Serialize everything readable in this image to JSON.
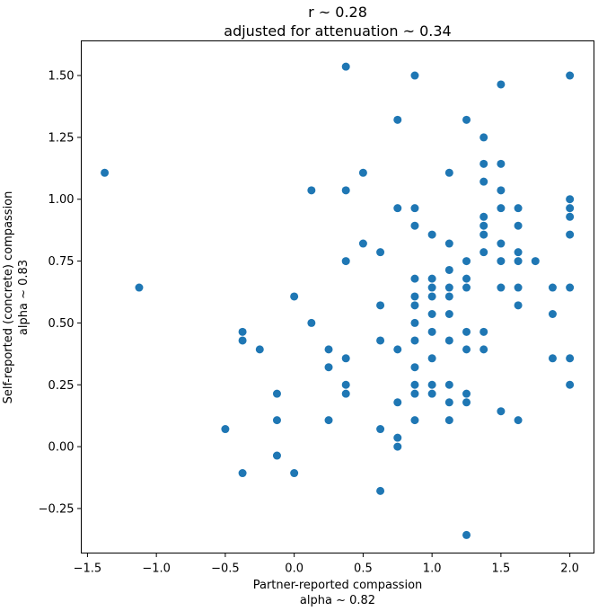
{
  "chart_data": {
    "type": "scatter",
    "title_lines": [
      "r ~ 0.28",
      "adjusted for attenuation ~ 0.34"
    ],
    "xlabel_lines": [
      "Partner-reported compassion",
      "alpha ~ 0.82"
    ],
    "ylabel_lines": [
      "Self-reported (concrete) compassion",
      "alpha ~ 0.83"
    ],
    "xlim": [
      -1.545,
      2.175
    ],
    "ylim": [
      -0.43,
      1.64
    ],
    "xticks": [
      -1.5,
      -1.0,
      -0.5,
      0.0,
      0.5,
      1.0,
      1.5,
      2.0
    ],
    "xtick_labels": [
      "−1.5",
      "−1.0",
      "−0.5",
      "0.0",
      "0.5",
      "1.0",
      "1.5",
      "2.0"
    ],
    "yticks": [
      -0.25,
      0.0,
      0.25,
      0.5,
      0.75,
      1.0,
      1.25,
      1.5
    ],
    "ytick_labels": [
      "−0.25",
      "0.00",
      "0.25",
      "0.50",
      "0.75",
      "1.00",
      "1.25",
      "1.50"
    ],
    "grid": false,
    "marker_color": "#1f77b4",
    "points": [
      {
        "x": -1.375,
        "y": 1.107
      },
      {
        "x": -1.125,
        "y": 0.643
      },
      {
        "x": -0.5,
        "y": 0.071
      },
      {
        "x": -0.375,
        "y": 0.464
      },
      {
        "x": -0.375,
        "y": 0.429
      },
      {
        "x": -0.375,
        "y": -0.107
      },
      {
        "x": -0.25,
        "y": 0.393
      },
      {
        "x": -0.125,
        "y": 0.214
      },
      {
        "x": -0.125,
        "y": 0.107
      },
      {
        "x": -0.125,
        "y": -0.036
      },
      {
        "x": 0.0,
        "y": 0.607
      },
      {
        "x": 0.0,
        "y": -0.107
      },
      {
        "x": 0.125,
        "y": 1.036
      },
      {
        "x": 0.125,
        "y": 0.5
      },
      {
        "x": 0.25,
        "y": 0.393
      },
      {
        "x": 0.25,
        "y": 0.321
      },
      {
        "x": 0.25,
        "y": 0.107
      },
      {
        "x": 0.375,
        "y": 1.536
      },
      {
        "x": 0.375,
        "y": 1.036
      },
      {
        "x": 0.375,
        "y": 0.75
      },
      {
        "x": 0.375,
        "y": 0.357
      },
      {
        "x": 0.375,
        "y": 0.25
      },
      {
        "x": 0.375,
        "y": 0.214
      },
      {
        "x": 0.5,
        "y": 1.107
      },
      {
        "x": 0.5,
        "y": 0.821
      },
      {
        "x": 0.625,
        "y": 0.786
      },
      {
        "x": 0.625,
        "y": 0.571
      },
      {
        "x": 0.625,
        "y": 0.429
      },
      {
        "x": 0.625,
        "y": 0.071
      },
      {
        "x": 0.625,
        "y": -0.179
      },
      {
        "x": 0.75,
        "y": 1.321
      },
      {
        "x": 0.75,
        "y": 0.964
      },
      {
        "x": 0.75,
        "y": 0.393
      },
      {
        "x": 0.75,
        "y": 0.179
      },
      {
        "x": 0.75,
        "y": 0.036
      },
      {
        "x": 0.75,
        "y": 0.0
      },
      {
        "x": 0.875,
        "y": 1.5
      },
      {
        "x": 0.875,
        "y": 0.964
      },
      {
        "x": 0.875,
        "y": 0.893
      },
      {
        "x": 0.875,
        "y": 0.679
      },
      {
        "x": 0.875,
        "y": 0.607
      },
      {
        "x": 0.875,
        "y": 0.571
      },
      {
        "x": 0.875,
        "y": 0.5
      },
      {
        "x": 0.875,
        "y": 0.429
      },
      {
        "x": 0.875,
        "y": 0.321
      },
      {
        "x": 0.875,
        "y": 0.25
      },
      {
        "x": 0.875,
        "y": 0.214
      },
      {
        "x": 0.875,
        "y": 0.107
      },
      {
        "x": 1.0,
        "y": 0.857
      },
      {
        "x": 1.0,
        "y": 0.679
      },
      {
        "x": 1.0,
        "y": 0.643
      },
      {
        "x": 1.0,
        "y": 0.607
      },
      {
        "x": 1.0,
        "y": 0.536
      },
      {
        "x": 1.0,
        "y": 0.464
      },
      {
        "x": 1.0,
        "y": 0.357
      },
      {
        "x": 1.0,
        "y": 0.25
      },
      {
        "x": 1.0,
        "y": 0.214
      },
      {
        "x": 1.125,
        "y": 1.107
      },
      {
        "x": 1.125,
        "y": 0.821
      },
      {
        "x": 1.125,
        "y": 0.714
      },
      {
        "x": 1.125,
        "y": 0.643
      },
      {
        "x": 1.125,
        "y": 0.607
      },
      {
        "x": 1.125,
        "y": 0.536
      },
      {
        "x": 1.125,
        "y": 0.429
      },
      {
        "x": 1.125,
        "y": 0.25
      },
      {
        "x": 1.125,
        "y": 0.179
      },
      {
        "x": 1.125,
        "y": 0.107
      },
      {
        "x": 1.25,
        "y": 1.321
      },
      {
        "x": 1.25,
        "y": 0.75
      },
      {
        "x": 1.25,
        "y": 0.679
      },
      {
        "x": 1.25,
        "y": 0.643
      },
      {
        "x": 1.25,
        "y": 0.464
      },
      {
        "x": 1.25,
        "y": 0.393
      },
      {
        "x": 1.25,
        "y": 0.214
      },
      {
        "x": 1.25,
        "y": 0.179
      },
      {
        "x": 1.25,
        "y": -0.357
      },
      {
        "x": 1.375,
        "y": 1.25
      },
      {
        "x": 1.375,
        "y": 1.143
      },
      {
        "x": 1.375,
        "y": 1.071
      },
      {
        "x": 1.375,
        "y": 0.929
      },
      {
        "x": 1.375,
        "y": 0.893
      },
      {
        "x": 1.375,
        "y": 0.857
      },
      {
        "x": 1.375,
        "y": 0.786
      },
      {
        "x": 1.375,
        "y": 0.464
      },
      {
        "x": 1.375,
        "y": 0.393
      },
      {
        "x": 1.5,
        "y": 1.464
      },
      {
        "x": 1.5,
        "y": 1.143
      },
      {
        "x": 1.5,
        "y": 1.036
      },
      {
        "x": 1.5,
        "y": 0.964
      },
      {
        "x": 1.5,
        "y": 0.821
      },
      {
        "x": 1.5,
        "y": 0.75
      },
      {
        "x": 1.5,
        "y": 0.643
      },
      {
        "x": 1.5,
        "y": 0.143
      },
      {
        "x": 1.625,
        "y": 0.964
      },
      {
        "x": 1.625,
        "y": 0.893
      },
      {
        "x": 1.625,
        "y": 0.786
      },
      {
        "x": 1.625,
        "y": 0.75
      },
      {
        "x": 1.625,
        "y": 0.643
      },
      {
        "x": 1.625,
        "y": 0.571
      },
      {
        "x": 1.625,
        "y": 0.107
      },
      {
        "x": 1.75,
        "y": 0.75
      },
      {
        "x": 1.875,
        "y": 0.643
      },
      {
        "x": 1.875,
        "y": 0.536
      },
      {
        "x": 1.875,
        "y": 0.357
      },
      {
        "x": 2.0,
        "y": 1.5
      },
      {
        "x": 2.0,
        "y": 1.0
      },
      {
        "x": 2.0,
        "y": 0.964
      },
      {
        "x": 2.0,
        "y": 0.929
      },
      {
        "x": 2.0,
        "y": 0.857
      },
      {
        "x": 2.0,
        "y": 0.643
      },
      {
        "x": 2.0,
        "y": 0.357
      },
      {
        "x": 2.0,
        "y": 0.25
      }
    ]
  }
}
